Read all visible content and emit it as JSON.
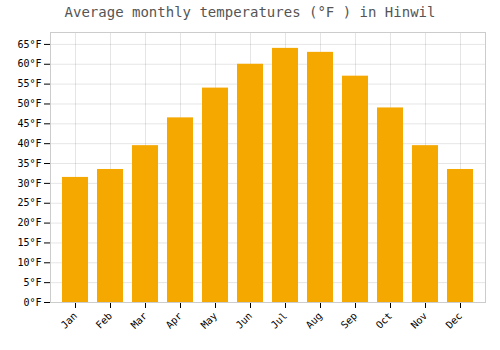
{
  "chart_data": {
    "type": "bar",
    "title": "Average monthly temperatures (°F ) in Hinwil",
    "categories": [
      "Jan",
      "Feb",
      "Mar",
      "Apr",
      "May",
      "Jun",
      "Jul",
      "Aug",
      "Sep",
      "Oct",
      "Nov",
      "Dec"
    ],
    "values": [
      31.5,
      33.5,
      39.5,
      46.5,
      54.0,
      60.0,
      64.0,
      63.0,
      57.0,
      49.0,
      39.5,
      33.5
    ],
    "color": "#F5A800",
    "ylim": [
      0,
      68
    ],
    "yticks": [
      {
        "value": 0,
        "label": "0°F"
      },
      {
        "value": 5,
        "label": "5°F"
      },
      {
        "value": 10,
        "label": "10°F"
      },
      {
        "value": 15,
        "label": "15°F"
      },
      {
        "value": 20,
        "label": "20°F"
      },
      {
        "value": 25,
        "label": "25°F"
      },
      {
        "value": 30,
        "label": "30°F"
      },
      {
        "value": 35,
        "label": "35°F"
      },
      {
        "value": 40,
        "label": "40°F"
      },
      {
        "value": 45,
        "label": "45°F"
      },
      {
        "value": 50,
        "label": "50°F"
      },
      {
        "value": 55,
        "label": "55°F"
      },
      {
        "value": 60,
        "label": "60°F"
      },
      {
        "value": 65,
        "label": "65°F"
      }
    ],
    "grid": true
  }
}
